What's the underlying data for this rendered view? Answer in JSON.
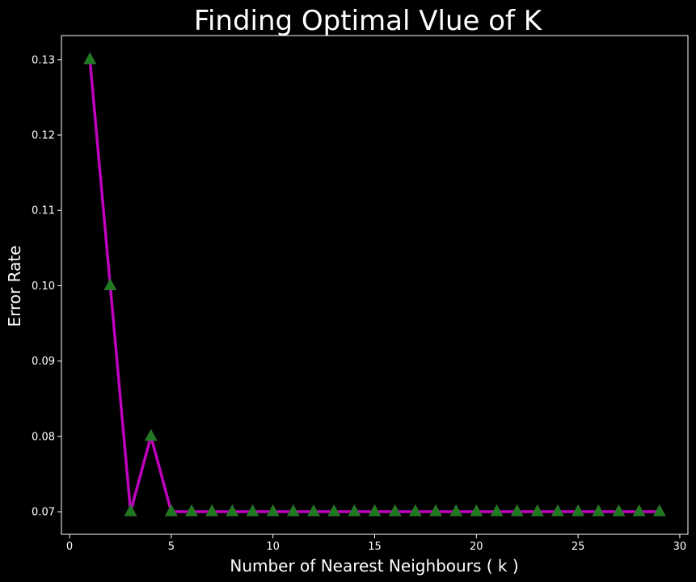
{
  "chart_data": {
    "type": "line",
    "title": "Finding Optimal Vlue of K",
    "xlabel": "Number of Nearest Neighbours ( k )",
    "ylabel": "Error Rate",
    "xlim": [
      -0.4,
      30.4
    ],
    "ylim": [
      0.067,
      0.1332
    ],
    "xticks": [
      0,
      5,
      10,
      15,
      20,
      25,
      30
    ],
    "yticks": [
      0.07,
      0.08,
      0.09,
      0.1,
      0.11,
      0.12,
      0.13
    ],
    "ytick_labels": [
      "0.07",
      "0.08",
      "0.09",
      "0.10",
      "0.11",
      "0.12",
      "0.13"
    ],
    "grid": false,
    "series": [
      {
        "x": [
          1,
          2,
          3,
          4,
          5,
          6,
          7,
          8,
          9,
          10,
          11,
          12,
          13,
          14,
          15,
          16,
          17,
          18,
          19,
          20,
          21,
          22,
          23,
          24,
          25,
          26,
          27,
          28,
          29
        ],
        "values": [
          0.13,
          0.1,
          0.07,
          0.08,
          0.07,
          0.07,
          0.07,
          0.07,
          0.07,
          0.07,
          0.07,
          0.07,
          0.07,
          0.07,
          0.07,
          0.07,
          0.07,
          0.07,
          0.07,
          0.07,
          0.07,
          0.07,
          0.07,
          0.07,
          0.07,
          0.07,
          0.07,
          0.07,
          0.07
        ],
        "marker": "triangle-up"
      }
    ],
    "colors": {
      "background": "#000000",
      "axes": "#ffffff",
      "line": "#bf00bf",
      "marker_fill": "#1e7a1e",
      "marker_edge": "#2e6e2e",
      "text": "#ffffff"
    }
  }
}
